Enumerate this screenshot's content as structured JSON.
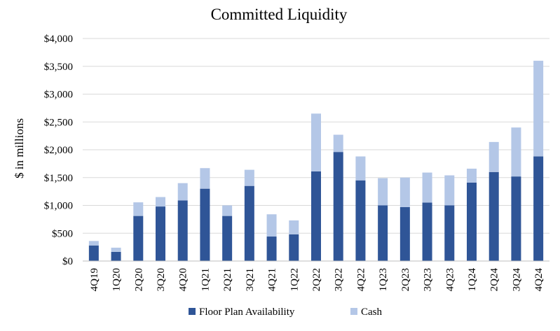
{
  "chart_data": {
    "type": "bar",
    "stacked": true,
    "title": "Committed Liquidity",
    "xlabel": "",
    "ylabel": "$ in millions",
    "ylim": [
      0,
      4000
    ],
    "ytick_step": 500,
    "ytick_labels": [
      "$0",
      "$500",
      "$1,000",
      "$1,500",
      "$2,000",
      "$2,500",
      "$3,000",
      "$3,500",
      "$4,000"
    ],
    "grid": true,
    "legend_position": "bottom",
    "categories": [
      "4Q19",
      "1Q20",
      "2Q20",
      "3Q20",
      "4Q20",
      "1Q21",
      "2Q21",
      "3Q21",
      "4Q21",
      "1Q22",
      "2Q22",
      "3Q22",
      "4Q22",
      "1Q23",
      "2Q23",
      "3Q23",
      "4Q23",
      "1Q24",
      "2Q24",
      "3Q24",
      "4Q24"
    ],
    "series": [
      {
        "name": "Floor Plan Availability",
        "color": "#2f5597",
        "values": [
          280,
          165,
          810,
          980,
          1090,
          1300,
          810,
          1350,
          440,
          480,
          1610,
          1960,
          1450,
          1000,
          970,
          1050,
          1000,
          1410,
          1600,
          1520,
          1880
        ]
      },
      {
        "name": "Cash",
        "color": "#b4c7e7",
        "values": [
          80,
          75,
          245,
          170,
          310,
          370,
          190,
          290,
          400,
          250,
          1040,
          310,
          430,
          490,
          530,
          540,
          540,
          250,
          540,
          880,
          1720
        ]
      }
    ]
  },
  "colors": {
    "gridline": "#d9d9d9",
    "axis": "#bfbfbf"
  }
}
